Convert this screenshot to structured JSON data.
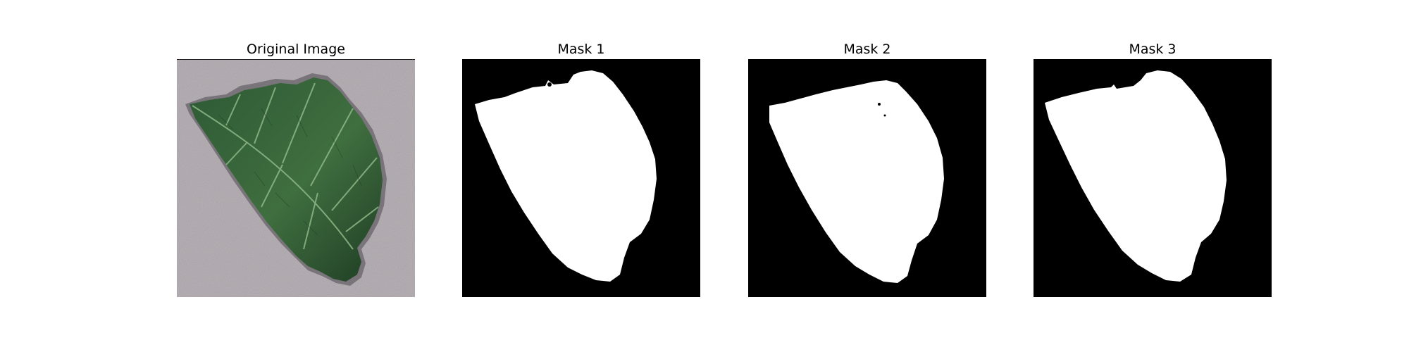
{
  "figure": {
    "panels": [
      {
        "title": "Original Image",
        "content": "leaf-photo"
      },
      {
        "title": "Mask 1",
        "content": "binary-mask"
      },
      {
        "title": "Mask 2",
        "content": "binary-mask"
      },
      {
        "title": "Mask 3",
        "content": "binary-mask"
      }
    ]
  },
  "colors": {
    "background": "#ffffff",
    "mask_background": "#000000",
    "mask_foreground": "#ffffff",
    "leaf_dark": "#24482a",
    "leaf_mid": "#3f6e3f",
    "leaf_vein": "#8fb889",
    "paper_gray": "#b7b1b6"
  }
}
